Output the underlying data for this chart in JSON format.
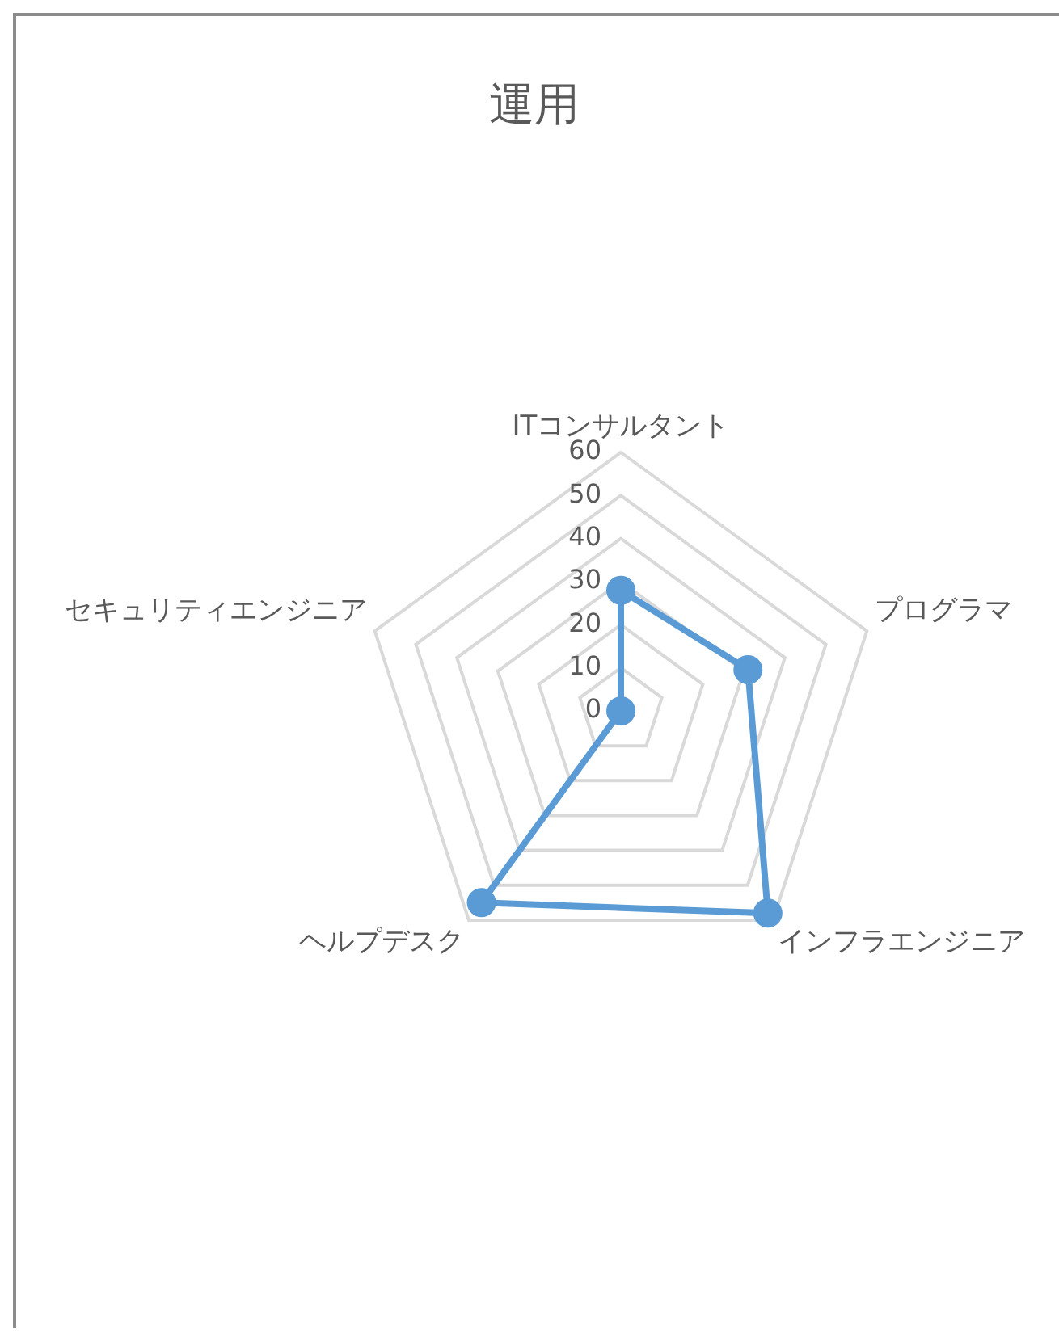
{
  "chart_data": {
    "type": "radar",
    "title": "運用",
    "categories": [
      "ITコンサルタント",
      "プログラマ",
      "インフラエンジニア",
      "ヘルプデスク",
      "セキュリティエンジニア"
    ],
    "series": [
      {
        "color": "#5b9bd5",
        "values": [
          28,
          31,
          58,
          55,
          0
        ]
      }
    ],
    "ylim": [
      0,
      60
    ],
    "yticks": [
      0,
      10,
      20,
      30,
      40,
      50,
      60
    ],
    "grid": true,
    "legend": false,
    "marker": "circle",
    "line_style": "solid"
  }
}
